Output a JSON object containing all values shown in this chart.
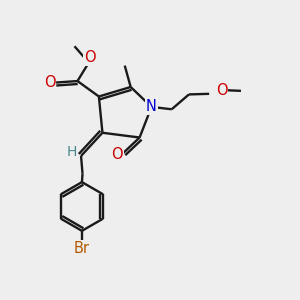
{
  "bg_color": "#eeeeee",
  "bond_color": "#1a1a1a",
  "lw": 1.7,
  "dbo": 0.1,
  "atom_colors": {
    "O": "#cc0000",
    "N": "#0000cc",
    "Br": "#b35900",
    "H": "#4a8888",
    "C": "#1a1a1a"
  },
  "fs": 10.5,
  "figsize": [
    3.0,
    3.0
  ],
  "dpi": 100,
  "xlim": [
    0,
    10
  ],
  "ylim": [
    0,
    10
  ]
}
